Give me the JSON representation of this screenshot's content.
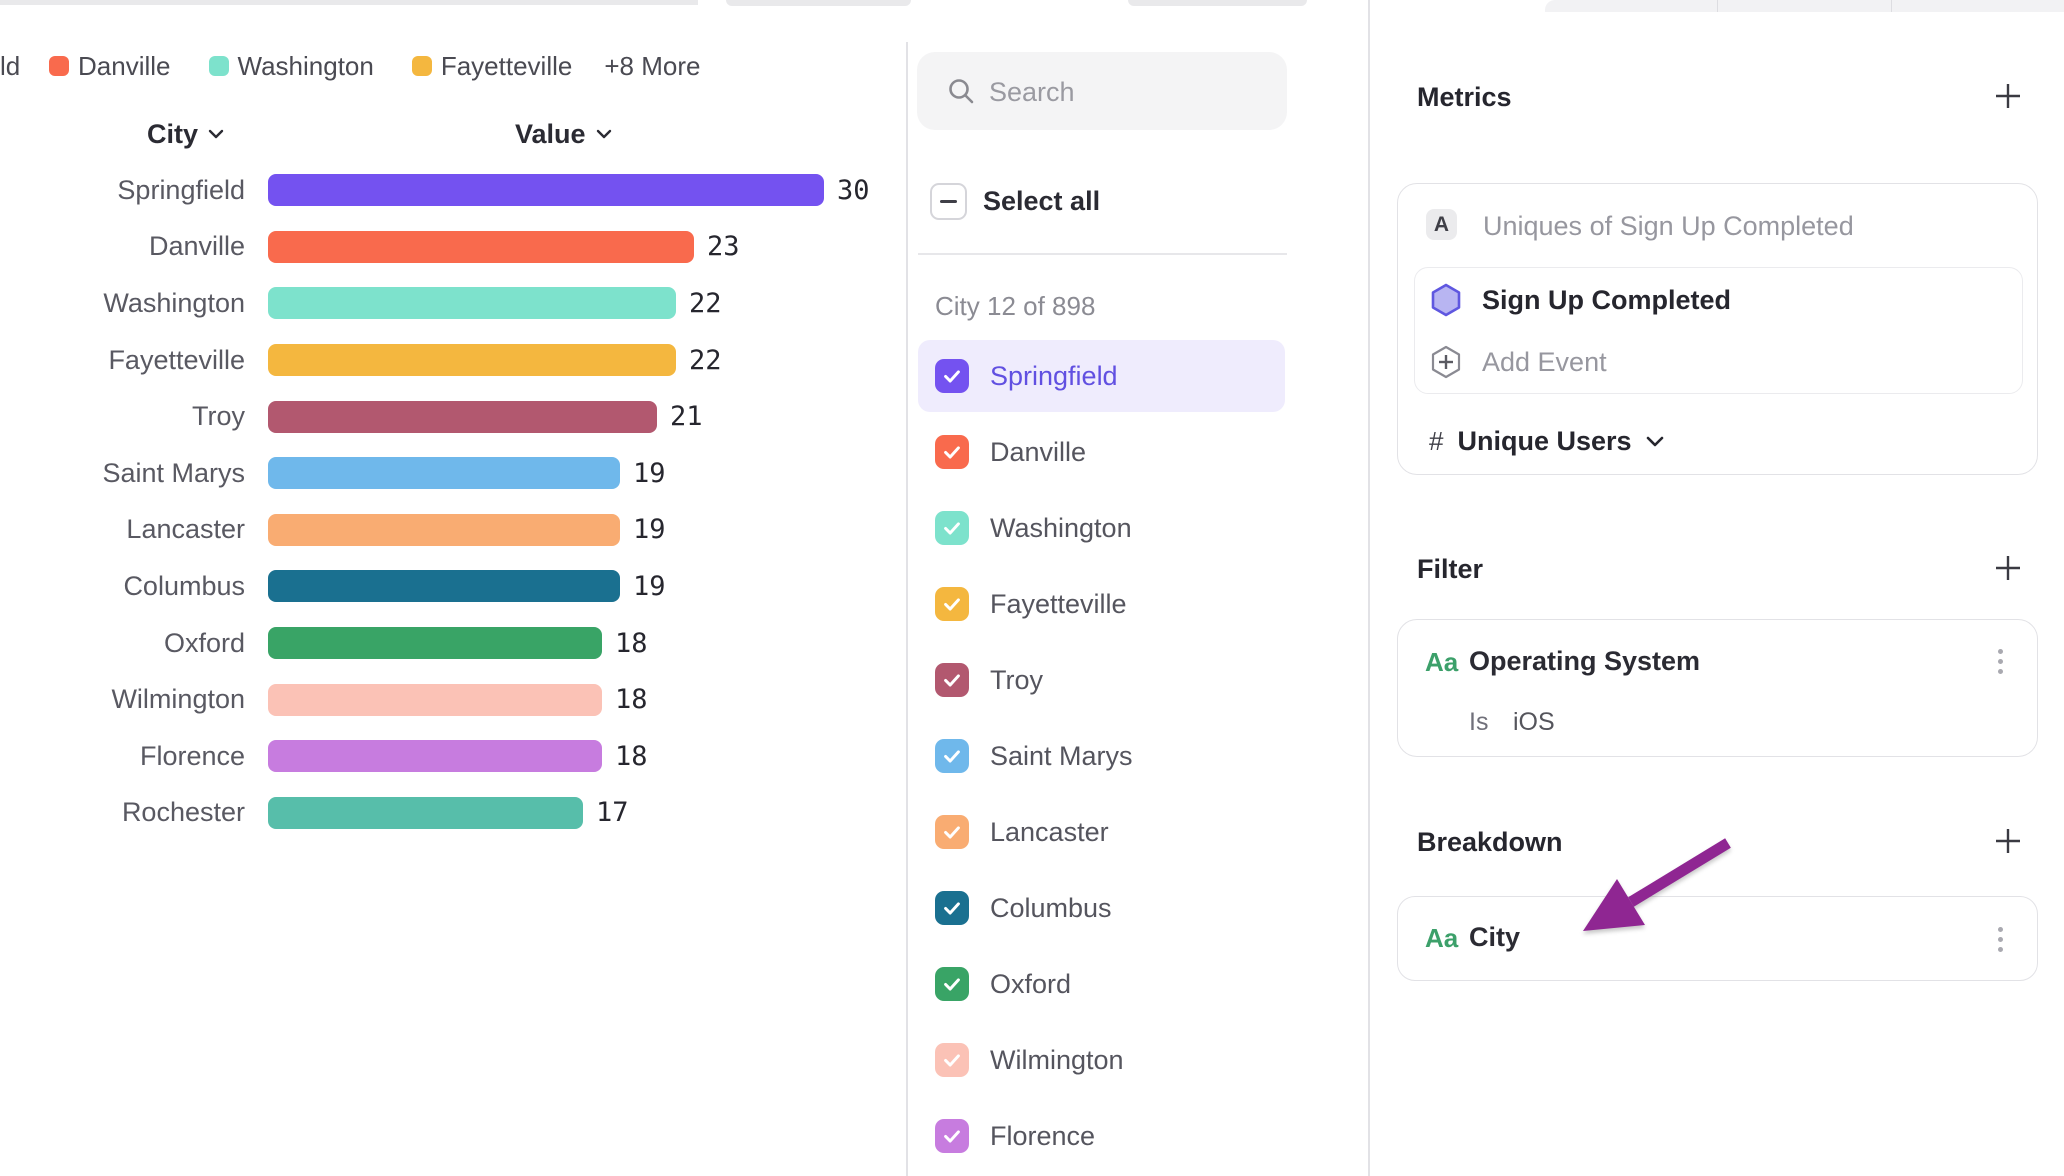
{
  "legend": {
    "truncated_label": "ld",
    "items": [
      {
        "label": "Danville",
        "color": "#F96A4D"
      },
      {
        "label": "Washington",
        "color": "#7DE2CC"
      },
      {
        "label": "Fayetteville",
        "color": "#F4B73F"
      }
    ],
    "more_label": "+8 More"
  },
  "chart_data": {
    "type": "bar",
    "orientation": "horizontal",
    "columns": {
      "category": "City",
      "value": "Value"
    },
    "categories": [
      "Springfield",
      "Danville",
      "Washington",
      "Fayetteville",
      "Troy",
      "Saint Marys",
      "Lancaster",
      "Columbus",
      "Oxford",
      "Wilmington",
      "Florence",
      "Rochester"
    ],
    "values": [
      30,
      23,
      22,
      22,
      21,
      19,
      19,
      19,
      18,
      18,
      18,
      17
    ],
    "colors": [
      "#7452F0",
      "#F96A4D",
      "#7DE2CC",
      "#F4B73F",
      "#B2586F",
      "#6FB8EB",
      "#F9AC72",
      "#1A7090",
      "#39A466",
      "#FBC2B6",
      "#C77CDF",
      "#57BEAA"
    ],
    "value_axis_max": 30,
    "grid": false,
    "legend_position": "top"
  },
  "list_panel": {
    "search_placeholder": "Search",
    "select_all_label": "Select all",
    "count_label": "City 12 of 898",
    "items": [
      {
        "label": "Springfield",
        "color": "#7452F0",
        "checked": true,
        "selected": true
      },
      {
        "label": "Danville",
        "color": "#F96A4D",
        "checked": true,
        "selected": false
      },
      {
        "label": "Washington",
        "color": "#7DE2CC",
        "checked": true,
        "selected": false
      },
      {
        "label": "Fayetteville",
        "color": "#F4B73F",
        "checked": true,
        "selected": false
      },
      {
        "label": "Troy",
        "color": "#B2586F",
        "checked": true,
        "selected": false
      },
      {
        "label": "Saint Marys",
        "color": "#6FB8EB",
        "checked": true,
        "selected": false
      },
      {
        "label": "Lancaster",
        "color": "#F9AC72",
        "checked": true,
        "selected": false
      },
      {
        "label": "Columbus",
        "color": "#1A7090",
        "checked": true,
        "selected": false
      },
      {
        "label": "Oxford",
        "color": "#39A466",
        "checked": true,
        "selected": false
      },
      {
        "label": "Wilmington",
        "color": "#FBC2B6",
        "checked": true,
        "selected": false
      },
      {
        "label": "Florence",
        "color": "#C77CDF",
        "checked": true,
        "selected": false
      }
    ]
  },
  "inspector": {
    "metrics": {
      "heading": "Metrics",
      "formula_badge": "A",
      "formula_text": "Uniques of Sign Up Completed",
      "event_name": "Sign Up Completed",
      "add_event_label": "Add Event",
      "measure_prefix": "#",
      "measure_label": "Unique Users"
    },
    "filter": {
      "heading": "Filter",
      "property_badge": "Aa",
      "property_name": "Operating System",
      "operator": "Is",
      "value": "iOS"
    },
    "breakdown": {
      "heading": "Breakdown",
      "property_badge": "Aa",
      "property_name": "City"
    }
  },
  "annotation": {
    "arrow_color": "#8F2692"
  }
}
